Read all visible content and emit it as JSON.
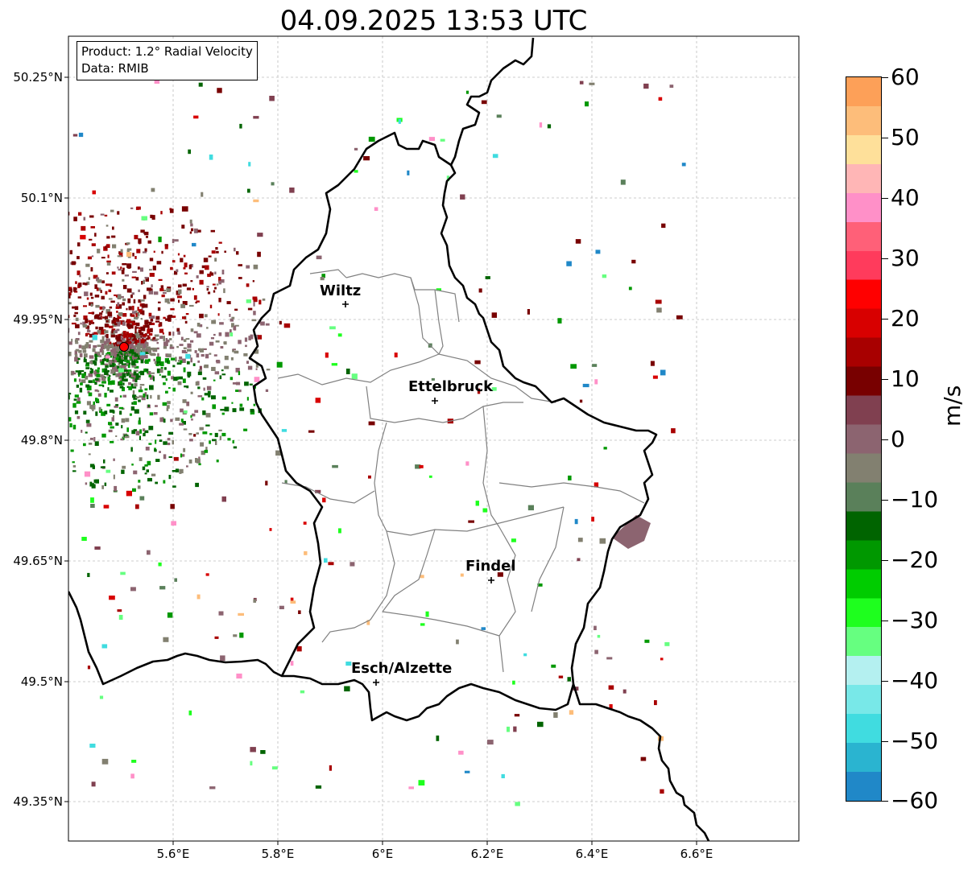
{
  "title": "04.09.2025 13:53 UTC",
  "info_box": {
    "product": "Product: 1.2° Radial Velocity",
    "data": "Data: RMIB"
  },
  "latitude_labels": [
    "50.25°N",
    "50.1°N",
    "49.95°N",
    "49.8°N",
    "49.65°N",
    "49.5°N",
    "49.35°N"
  ],
  "longitude_labels": [
    "5.6°E",
    "5.8°E",
    "6°E",
    "6.2°E",
    "6.4°E",
    "6.6°E"
  ],
  "cities": [
    {
      "name": "Wiltz"
    },
    {
      "name": "Ettelbruck"
    },
    {
      "name": "Findel"
    },
    {
      "name": "Esch/Alzette"
    }
  ],
  "colorbar": {
    "unit": "m/s",
    "min": -60,
    "max": 60,
    "tick_labels": [
      "60",
      "50",
      "40",
      "30",
      "20",
      "10",
      "0",
      "−10",
      "−20",
      "−30",
      "−40",
      "−50",
      "−60"
    ],
    "colors_top_to_bottom": [
      "#fda058",
      "#fdbd7a",
      "#fee09a",
      "#ffb6b6",
      "#ff90c8",
      "#ff6078",
      "#ff3b5c",
      "#ff0000",
      "#d80000",
      "#a80000",
      "#780000",
      "#804050",
      "#8c6470",
      "#828070",
      "#5a805a",
      "#006400",
      "#009800",
      "#00cc00",
      "#1eff1e",
      "#66ff80",
      "#b4f0f0",
      "#78e8e8",
      "#40dce0",
      "#2ab4d0",
      "#2088c8"
    ]
  },
  "radar_site_color": "#ff0000"
}
